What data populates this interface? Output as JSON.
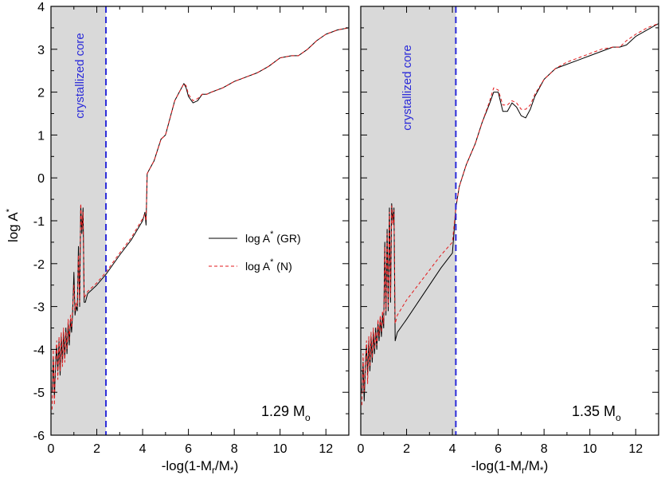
{
  "chart_data": [
    {
      "type": "line",
      "panel": "left",
      "mass_label": {
        "value": "1.29 M",
        "sub": "o"
      },
      "core_label": "crystallized core",
      "core_boundary_x": 2.4,
      "xlim": [
        0,
        13
      ],
      "ylim": [
        -6,
        4
      ],
      "x_ticks": [
        0,
        2,
        4,
        6,
        8,
        10,
        12
      ],
      "y_ticks": [
        -6,
        -5,
        -4,
        -3,
        -2,
        -1,
        0,
        1,
        2,
        3,
        4
      ],
      "xlabel": {
        "pre": "-log(1-M",
        "sub1": "r",
        "mid": "/M",
        "sub2": "*",
        "post": ")"
      },
      "ylabel": {
        "pre": "log A",
        "sup": "*"
      },
      "legend": [
        {
          "pre": "log A",
          "sup": "*",
          "post": " (GR)",
          "color": "#000000",
          "dash": "solid"
        },
        {
          "pre": "log A",
          "sup": "*",
          "post": " (N)",
          "color": "#e31a1c",
          "dash": "dashed"
        }
      ],
      "series": [
        {
          "name": "log A* (GR)",
          "color": "#000000",
          "x": [
            0.05,
            0.1,
            0.15,
            0.2,
            0.25,
            0.3,
            0.35,
            0.4,
            0.45,
            0.5,
            0.55,
            0.6,
            0.65,
            0.7,
            0.75,
            0.8,
            0.85,
            0.9,
            0.95,
            1.0,
            1.05,
            1.1,
            1.15,
            1.2,
            1.25,
            1.3,
            1.35,
            1.4,
            1.45,
            1.5,
            1.55,
            1.6,
            1.8,
            2.0,
            2.4,
            3.0,
            3.5,
            4.0,
            4.1,
            4.15,
            4.2,
            4.3,
            4.5,
            4.8,
            5.0,
            5.2,
            5.4,
            5.6,
            5.8,
            5.9,
            6.0,
            6.2,
            6.4,
            6.6,
            6.8,
            7.0,
            7.5,
            8.0,
            8.5,
            9.0,
            9.5,
            10.0,
            10.5,
            10.8,
            11.2,
            11.6,
            12.0,
            12.5,
            13.0
          ],
          "y": [
            -5.0,
            -4.2,
            -5.1,
            -4.4,
            -3.9,
            -4.5,
            -3.8,
            -4.6,
            -3.7,
            -4.3,
            -3.6,
            -4.2,
            -3.5,
            -4.1,
            -3.4,
            -3.9,
            -3.3,
            -3.6,
            -3.1,
            -2.2,
            -3.2,
            -3.0,
            -3.1,
            -1.6,
            -3.0,
            -0.65,
            -1.3,
            -0.7,
            -2.9,
            -2.9,
            -2.8,
            -2.7,
            -2.6,
            -2.5,
            -2.25,
            -1.8,
            -1.45,
            -1.0,
            -0.8,
            -1.1,
            0.1,
            0.2,
            0.4,
            0.9,
            1.0,
            1.4,
            1.8,
            2.0,
            2.2,
            2.1,
            1.9,
            1.75,
            1.8,
            1.95,
            1.95,
            2.0,
            2.1,
            2.25,
            2.35,
            2.45,
            2.6,
            2.8,
            2.85,
            2.85,
            3.0,
            3.2,
            3.35,
            3.45,
            3.5
          ]
        },
        {
          "name": "log A* (N)",
          "color": "#e31a1c",
          "x": [
            0.05,
            0.1,
            0.15,
            0.2,
            0.25,
            0.3,
            0.35,
            0.4,
            0.45,
            0.5,
            0.55,
            0.6,
            0.65,
            0.7,
            0.75,
            0.8,
            0.85,
            0.9,
            0.95,
            1.0,
            1.05,
            1.1,
            1.15,
            1.2,
            1.25,
            1.3,
            1.35,
            1.4,
            1.45,
            1.5,
            1.55,
            1.6,
            1.8,
            2.0,
            2.4,
            3.0,
            3.5,
            4.0,
            4.1,
            4.15,
            4.2,
            4.3,
            4.5,
            4.8,
            5.0,
            5.2,
            5.4,
            5.6,
            5.8,
            5.9,
            6.0,
            6.2,
            6.4,
            6.6,
            6.8,
            7.0,
            7.5,
            8.0,
            8.5,
            9.0,
            9.5,
            10.0,
            10.5,
            10.8,
            11.2,
            11.6,
            12.0,
            12.5,
            13.0
          ],
          "y": [
            -5.4,
            -4.0,
            -5.3,
            -4.2,
            -3.8,
            -4.7,
            -3.7,
            -4.5,
            -3.6,
            -4.4,
            -3.5,
            -4.3,
            -3.6,
            -4.0,
            -3.3,
            -3.8,
            -3.2,
            -3.5,
            -3.0,
            -2.5,
            -3.1,
            -2.9,
            -3.0,
            -1.8,
            -2.9,
            -0.6,
            -1.2,
            -0.8,
            -2.8,
            -2.75,
            -2.7,
            -2.65,
            -2.55,
            -2.45,
            -2.2,
            -1.75,
            -1.4,
            -0.95,
            -0.85,
            -1.0,
            0.1,
            0.2,
            0.4,
            0.9,
            1.0,
            1.4,
            1.8,
            2.0,
            2.2,
            2.15,
            1.95,
            1.8,
            1.85,
            1.95,
            1.95,
            2.0,
            2.1,
            2.25,
            2.35,
            2.45,
            2.6,
            2.8,
            2.85,
            2.85,
            3.0,
            3.2,
            3.35,
            3.45,
            3.5
          ]
        }
      ]
    },
    {
      "type": "line",
      "panel": "right",
      "mass_label": {
        "value": "1.35 M",
        "sub": "o"
      },
      "core_label": "crystallized core",
      "core_boundary_x": 4.15,
      "xlim": [
        0,
        13
      ],
      "ylim": [
        -6,
        4
      ],
      "x_ticks": [
        0,
        2,
        4,
        6,
        8,
        10,
        12
      ],
      "y_ticks": [
        -6,
        -5,
        -4,
        -3,
        -2,
        -1,
        0,
        1,
        2,
        3,
        4
      ],
      "xlabel": {
        "pre": "-log(1-M",
        "sub1": "r",
        "mid": "/M",
        "sub2": "*",
        "post": ")"
      },
      "series": [
        {
          "name": "log A* (GR)",
          "color": "#000000",
          "x": [
            0.05,
            0.1,
            0.15,
            0.2,
            0.25,
            0.3,
            0.35,
            0.4,
            0.45,
            0.5,
            0.55,
            0.6,
            0.65,
            0.7,
            0.75,
            0.8,
            0.85,
            0.9,
            0.95,
            1.0,
            1.05,
            1.1,
            1.15,
            1.2,
            1.25,
            1.3,
            1.35,
            1.4,
            1.45,
            1.5,
            1.6,
            2.0,
            2.5,
            3.0,
            3.5,
            4.0,
            4.15,
            4.3,
            4.6,
            5.0,
            5.3,
            5.6,
            5.8,
            6.0,
            6.2,
            6.4,
            6.6,
            6.8,
            7.0,
            7.2,
            7.4,
            7.6,
            8.0,
            8.5,
            9.0,
            9.5,
            10.0,
            10.5,
            11.0,
            11.3,
            11.6,
            12.0,
            12.5,
            13.0
          ],
          "y": [
            -5.0,
            -4.3,
            -5.2,
            -4.4,
            -3.9,
            -4.6,
            -3.8,
            -4.5,
            -3.7,
            -4.3,
            -3.6,
            -4.1,
            -3.5,
            -4.0,
            -3.4,
            -3.8,
            -3.3,
            -3.7,
            -3.2,
            -3.5,
            -1.5,
            -3.2,
            -1.2,
            -3.1,
            -0.7,
            -2.9,
            -0.6,
            -1.0,
            -0.7,
            -3.8,
            -3.6,
            -3.3,
            -2.9,
            -2.5,
            -2.1,
            -1.75,
            -0.7,
            -0.2,
            0.3,
            0.8,
            1.3,
            1.7,
            2.0,
            2.0,
            1.55,
            1.55,
            1.75,
            1.65,
            1.45,
            1.4,
            1.6,
            1.9,
            2.3,
            2.55,
            2.65,
            2.75,
            2.85,
            2.95,
            3.05,
            3.05,
            3.1,
            3.3,
            3.45,
            3.6
          ]
        },
        {
          "name": "log A* (N)",
          "color": "#e31a1c",
          "x": [
            0.05,
            0.1,
            0.15,
            0.2,
            0.25,
            0.3,
            0.35,
            0.4,
            0.45,
            0.5,
            0.55,
            0.6,
            0.65,
            0.7,
            0.75,
            0.8,
            0.85,
            0.9,
            0.95,
            1.0,
            1.05,
            1.1,
            1.15,
            1.2,
            1.25,
            1.3,
            1.35,
            1.4,
            1.45,
            1.5,
            1.6,
            2.0,
            2.5,
            3.0,
            3.5,
            4.0,
            4.15,
            4.3,
            4.6,
            5.0,
            5.3,
            5.6,
            5.8,
            6.0,
            6.2,
            6.4,
            6.6,
            6.8,
            7.0,
            7.2,
            7.4,
            7.6,
            8.0,
            8.5,
            9.0,
            9.5,
            10.0,
            10.5,
            11.0,
            11.3,
            11.6,
            12.0,
            12.5,
            13.0
          ],
          "y": [
            -5.3,
            -4.1,
            -5.0,
            -4.3,
            -3.8,
            -4.8,
            -3.7,
            -4.4,
            -3.6,
            -4.2,
            -3.5,
            -4.0,
            -3.6,
            -3.9,
            -3.3,
            -3.7,
            -3.2,
            -3.6,
            -3.1,
            -3.4,
            -1.6,
            -3.1,
            -1.3,
            -3.0,
            -0.8,
            -2.8,
            -0.65,
            -1.1,
            -0.75,
            -3.4,
            -3.2,
            -2.85,
            -2.5,
            -2.15,
            -1.8,
            -1.5,
            -0.7,
            -0.2,
            0.3,
            0.8,
            1.3,
            1.75,
            2.1,
            2.05,
            1.7,
            1.7,
            1.8,
            1.75,
            1.6,
            1.6,
            1.7,
            1.95,
            2.3,
            2.55,
            2.7,
            2.8,
            2.9,
            3.0,
            3.05,
            3.05,
            3.2,
            3.35,
            3.5,
            3.6
          ]
        }
      ]
    }
  ]
}
